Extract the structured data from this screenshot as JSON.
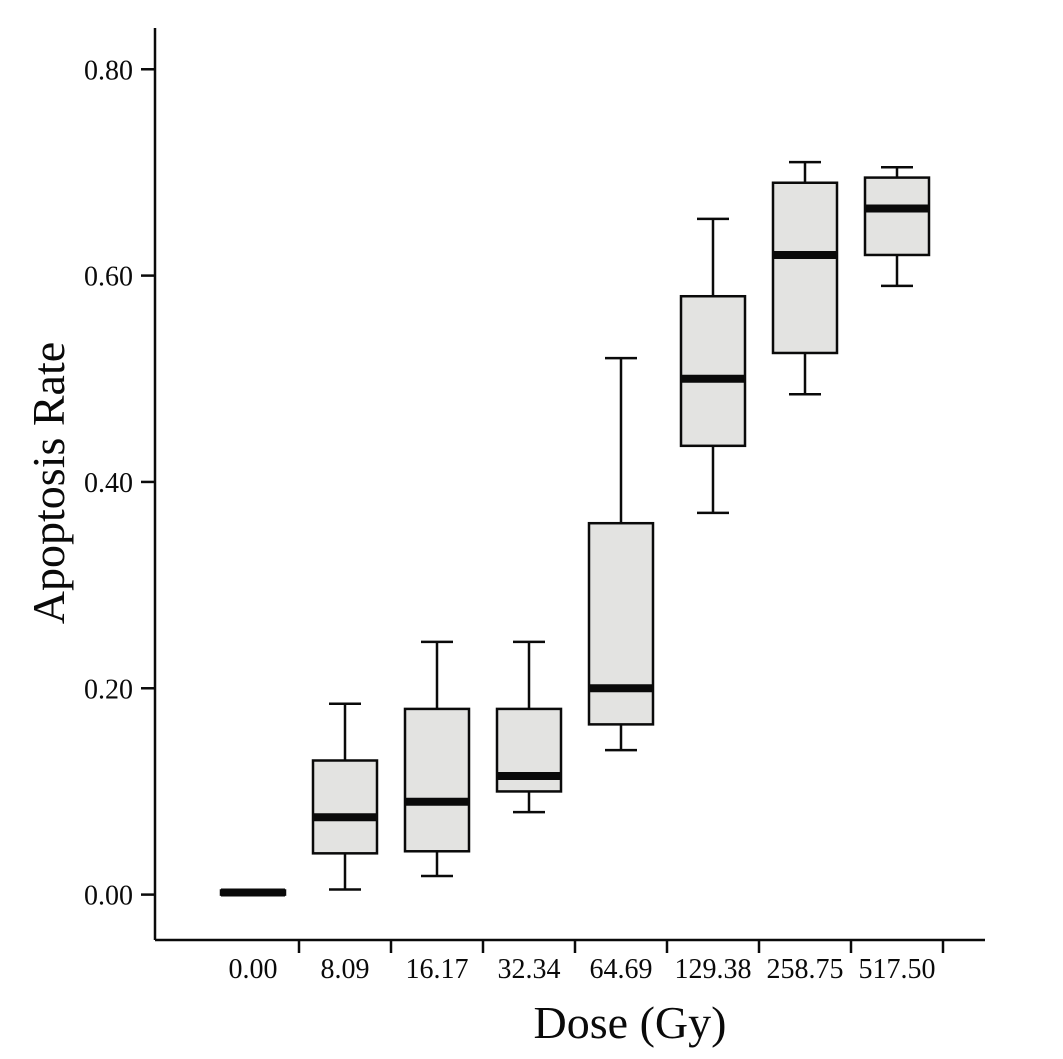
{
  "chart_data": {
    "type": "box",
    "title": "",
    "xlabel": "Dose (Gy)",
    "ylabel": "Apoptosis Rate",
    "categories": [
      "0.00",
      "8.09",
      "16.17",
      "32.34",
      "64.69",
      "129.38",
      "258.75",
      "517.50"
    ],
    "y_ticks": [
      {
        "label": "0.00",
        "value": 0.0
      },
      {
        "label": "0.20",
        "value": 0.2
      },
      {
        "label": "0.40",
        "value": 0.4
      },
      {
        "label": "0.60",
        "value": 0.6
      },
      {
        "label": "0.80",
        "value": 0.8
      }
    ],
    "ylim": [
      -0.044,
      0.84
    ],
    "grid": false,
    "legend": false,
    "boxes": [
      {
        "category": "0.00",
        "whisker_low": 0.0,
        "q1": 0.0,
        "median": 0.002,
        "q3": 0.004,
        "whisker_high": 0.004
      },
      {
        "category": "8.09",
        "whisker_low": 0.005,
        "q1": 0.04,
        "median": 0.075,
        "q3": 0.13,
        "whisker_high": 0.185
      },
      {
        "category": "16.17",
        "whisker_low": 0.018,
        "q1": 0.042,
        "median": 0.09,
        "q3": 0.18,
        "whisker_high": 0.245
      },
      {
        "category": "32.34",
        "whisker_low": 0.08,
        "q1": 0.1,
        "median": 0.115,
        "q3": 0.18,
        "whisker_high": 0.245
      },
      {
        "category": "64.69",
        "whisker_low": 0.14,
        "q1": 0.165,
        "median": 0.2,
        "q3": 0.36,
        "whisker_high": 0.52
      },
      {
        "category": "129.38",
        "whisker_low": 0.37,
        "q1": 0.435,
        "median": 0.5,
        "q3": 0.58,
        "whisker_high": 0.655
      },
      {
        "category": "258.75",
        "whisker_low": 0.485,
        "q1": 0.525,
        "median": 0.62,
        "q3": 0.69,
        "whisker_high": 0.71
      },
      {
        "category": "517.50",
        "whisker_low": 0.59,
        "q1": 0.62,
        "median": 0.665,
        "q3": 0.695,
        "whisker_high": 0.705
      }
    ],
    "box_fill": "#e3e3e1",
    "line_color": "#0a0a0a",
    "background": "#ffffff"
  }
}
